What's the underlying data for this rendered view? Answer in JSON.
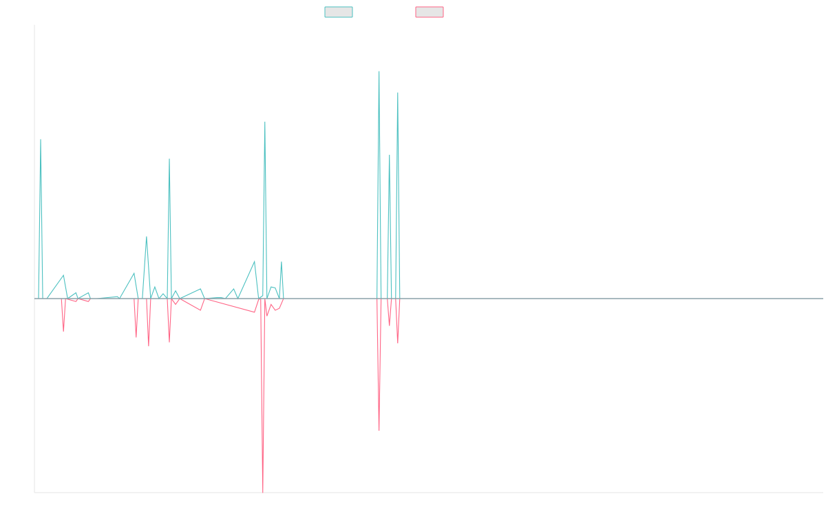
{
  "chart_data": {
    "type": "line",
    "title": "",
    "xlabel": "",
    "ylabel": "",
    "x_range": [
      0,
      190
    ],
    "ylim": [
      -100,
      100
    ],
    "grid": false,
    "legend_placement": "top-center",
    "colors": {
      "series_a": "#4bc0c0",
      "series_b": "#ff6384",
      "legend_fill": "#e6e6e6",
      "axis": "#e5e5e5",
      "zero_line": "#8aa0a8"
    },
    "series": [
      {
        "name": "",
        "points": [
          [
            0,
            0
          ],
          [
            1,
            0
          ],
          [
            1.5,
            82
          ],
          [
            2,
            0
          ],
          [
            3,
            0
          ],
          [
            7,
            12
          ],
          [
            8,
            0
          ],
          [
            10,
            3
          ],
          [
            10.5,
            0
          ],
          [
            13,
            3
          ],
          [
            13.5,
            0
          ],
          [
            15,
            0
          ],
          [
            20,
            1
          ],
          [
            20.5,
            0
          ],
          [
            24,
            13
          ],
          [
            25,
            0
          ],
          [
            26,
            0
          ],
          [
            27,
            32
          ],
          [
            28,
            0
          ],
          [
            29,
            6
          ],
          [
            30,
            0
          ],
          [
            31,
            2.5
          ],
          [
            32,
            0
          ],
          [
            32.5,
            72
          ],
          [
            33,
            0
          ],
          [
            34,
            4
          ],
          [
            35,
            0
          ],
          [
            40,
            5
          ],
          [
            41,
            0
          ],
          [
            44,
            0.5
          ],
          [
            45,
            0.5
          ],
          [
            46,
            0
          ],
          [
            48,
            5
          ],
          [
            49,
            0
          ],
          [
            53,
            19
          ],
          [
            54,
            0
          ],
          [
            55,
            1.5
          ],
          [
            55.5,
            91
          ],
          [
            56,
            0
          ],
          [
            57,
            6
          ],
          [
            58,
            5.5
          ],
          [
            59,
            0
          ],
          [
            59.5,
            19
          ],
          [
            60,
            0
          ],
          [
            82.5,
            0
          ],
          [
            83,
            117
          ],
          [
            83.5,
            0
          ],
          [
            85,
            0
          ],
          [
            85.5,
            74
          ],
          [
            86,
            0
          ],
          [
            87,
            0
          ],
          [
            87.5,
            106
          ],
          [
            88,
            0
          ],
          [
            190,
            0
          ]
        ]
      },
      {
        "name": "",
        "points": [
          [
            0,
            0
          ],
          [
            6.5,
            0
          ],
          [
            7,
            -17
          ],
          [
            7.5,
            0
          ],
          [
            10,
            -1.5
          ],
          [
            10.5,
            0
          ],
          [
            13,
            -1.5
          ],
          [
            13.5,
            0
          ],
          [
            24,
            0
          ],
          [
            24.5,
            -20
          ],
          [
            25,
            0
          ],
          [
            27,
            0
          ],
          [
            27.5,
            -24.5
          ],
          [
            28,
            0
          ],
          [
            32,
            0
          ],
          [
            32.5,
            -22.5
          ],
          [
            33,
            0
          ],
          [
            34,
            -3
          ],
          [
            35,
            0
          ],
          [
            40,
            -6
          ],
          [
            41,
            0
          ],
          [
            53,
            -7
          ],
          [
            54,
            -0.5
          ],
          [
            54.5,
            0
          ],
          [
            55,
            -100
          ],
          [
            55.5,
            0
          ],
          [
            56,
            -9
          ],
          [
            57,
            -3
          ],
          [
            58,
            -6
          ],
          [
            59,
            -5
          ],
          [
            60,
            0
          ],
          [
            82.5,
            0
          ],
          [
            83,
            -68
          ],
          [
            83.5,
            0
          ],
          [
            85,
            0
          ],
          [
            85.5,
            -14
          ],
          [
            86,
            0
          ],
          [
            87,
            0
          ],
          [
            87.5,
            -23
          ],
          [
            88,
            0
          ],
          [
            190,
            0
          ]
        ]
      }
    ]
  }
}
